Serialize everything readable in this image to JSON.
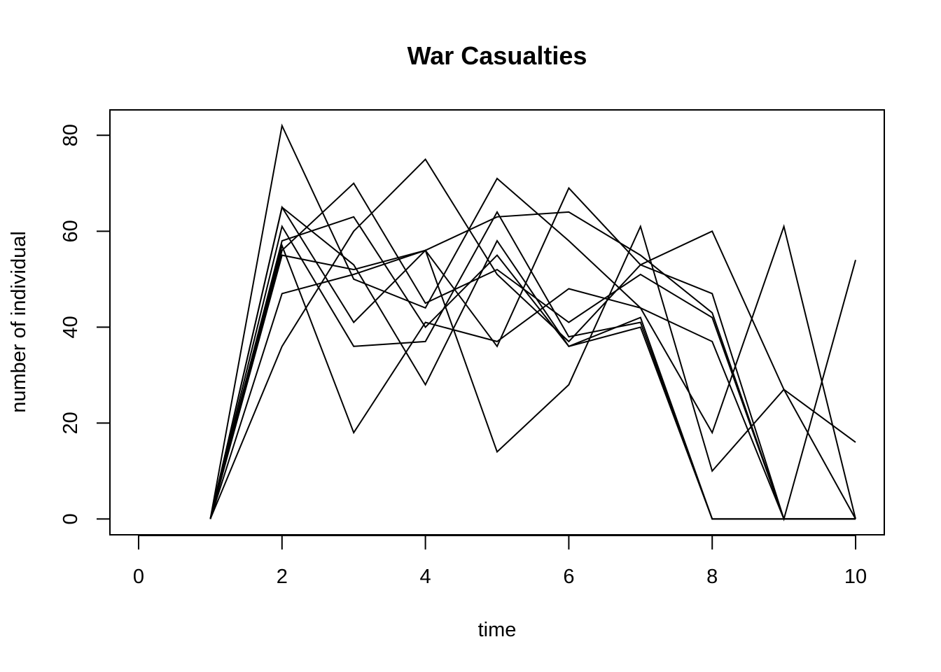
{
  "chart_data": {
    "type": "line",
    "title": "War Casualties",
    "xlabel": "time",
    "ylabel": "number of individual",
    "xlim": [
      -0.4,
      10.4
    ],
    "ylim": [
      -3.3,
      85.3
    ],
    "xticks": [
      0,
      2,
      4,
      6,
      8,
      10
    ],
    "yticks": [
      0,
      20,
      40,
      60,
      80
    ],
    "grid": false,
    "x": [
      1,
      2,
      3,
      4,
      5,
      6,
      7,
      8,
      9,
      10
    ],
    "series": [
      {
        "values": [
          0,
          82,
          50,
          44,
          71,
          58,
          44,
          37,
          0,
          0
        ]
      },
      {
        "values": [
          0,
          65,
          41,
          56,
          36,
          69,
          53,
          60,
          27,
          16
        ]
      },
      {
        "values": [
          0,
          65,
          53,
          28,
          58,
          36,
          40,
          0,
          0,
          0
        ]
      },
      {
        "values": [
          0,
          61,
          36,
          37,
          64,
          38,
          41,
          0,
          0,
          0
        ]
      },
      {
        "values": [
          0,
          58,
          63,
          40,
          55,
          36,
          42,
          0,
          0,
          0
        ]
      },
      {
        "values": [
          0,
          56,
          70,
          45,
          52,
          41,
          51,
          42,
          0,
          0
        ]
      },
      {
        "values": [
          0,
          47,
          51,
          56,
          63,
          64,
          55,
          43,
          0,
          0
        ]
      },
      {
        "values": [
          0,
          36,
          60,
          75,
          51,
          37,
          53,
          47,
          0,
          54
        ]
      },
      {
        "values": [
          0,
          57,
          18,
          41,
          37,
          48,
          44,
          18,
          61,
          0
        ]
      },
      {
        "values": [
          0,
          55,
          52,
          56,
          14,
          28,
          61,
          10,
          27,
          0
        ]
      }
    ]
  }
}
